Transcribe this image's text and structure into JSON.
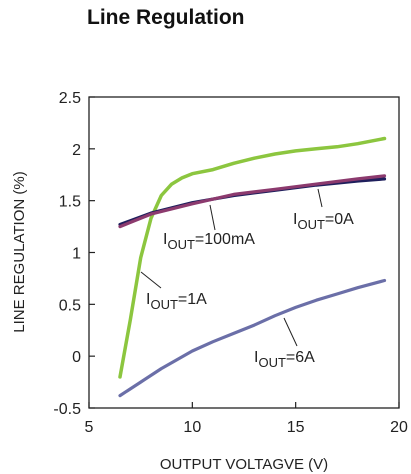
{
  "chart_data": {
    "type": "line",
    "title": "Line Regulation",
    "xlabel": "OUTPUT VOLTAGVE (V)",
    "ylabel": "LINE REGULATION (%)",
    "xlim": [
      5,
      20
    ],
    "ylim": [
      -0.5,
      2.5
    ],
    "x_ticks": [
      "5",
      "10",
      "15",
      "20"
    ],
    "x_tick_values": [
      5,
      10,
      15,
      20
    ],
    "y_ticks": [
      "2.5",
      "2",
      "1.5",
      "1",
      "0.5",
      "0",
      "-0.5"
    ],
    "y_tick_values": [
      2.5,
      2,
      1.5,
      1,
      0.5,
      0,
      -0.5
    ],
    "grid": false,
    "series": [
      {
        "name": "IOUT=0A",
        "label_main": "I",
        "label_sub": "OUT",
        "label_rest": "=0A",
        "color": "#1f1f5c",
        "x": [
          6.5,
          8,
          10,
          12,
          14,
          16,
          18,
          19.3
        ],
        "y": [
          1.27,
          1.38,
          1.48,
          1.55,
          1.6,
          1.65,
          1.69,
          1.71
        ]
      },
      {
        "name": "IOUT=100mA",
        "label_main": "I",
        "label_sub": "OUT",
        "label_rest": "=100mA",
        "color": "#8c3a6e",
        "x": [
          6.5,
          8,
          10,
          12,
          14,
          16,
          18,
          19.3
        ],
        "y": [
          1.25,
          1.37,
          1.47,
          1.56,
          1.61,
          1.66,
          1.71,
          1.74
        ]
      },
      {
        "name": "IOUT=1A",
        "label_main": "I",
        "label_sub": "OUT",
        "label_rest": "=1A",
        "color": "#8cc63f",
        "x": [
          6.5,
          7,
          7.5,
          8,
          8.5,
          9,
          9.5,
          10,
          11,
          12,
          13,
          14,
          15,
          16,
          17,
          18,
          19.3
        ],
        "y": [
          -0.2,
          0.35,
          0.95,
          1.33,
          1.55,
          1.66,
          1.72,
          1.76,
          1.8,
          1.86,
          1.91,
          1.95,
          1.98,
          2.0,
          2.02,
          2.05,
          2.1
        ]
      },
      {
        "name": "IOUT=6A",
        "label_main": "I",
        "label_sub": "OUT",
        "label_rest": "=6A",
        "color": "#6b6fa8",
        "x": [
          6.5,
          7.5,
          8.5,
          10,
          11,
          12,
          13,
          14,
          15,
          16,
          17,
          18,
          19.3
        ],
        "y": [
          -0.38,
          -0.25,
          -0.12,
          0.05,
          0.14,
          0.22,
          0.3,
          0.39,
          0.47,
          0.54,
          0.6,
          0.66,
          0.73
        ]
      }
    ]
  }
}
